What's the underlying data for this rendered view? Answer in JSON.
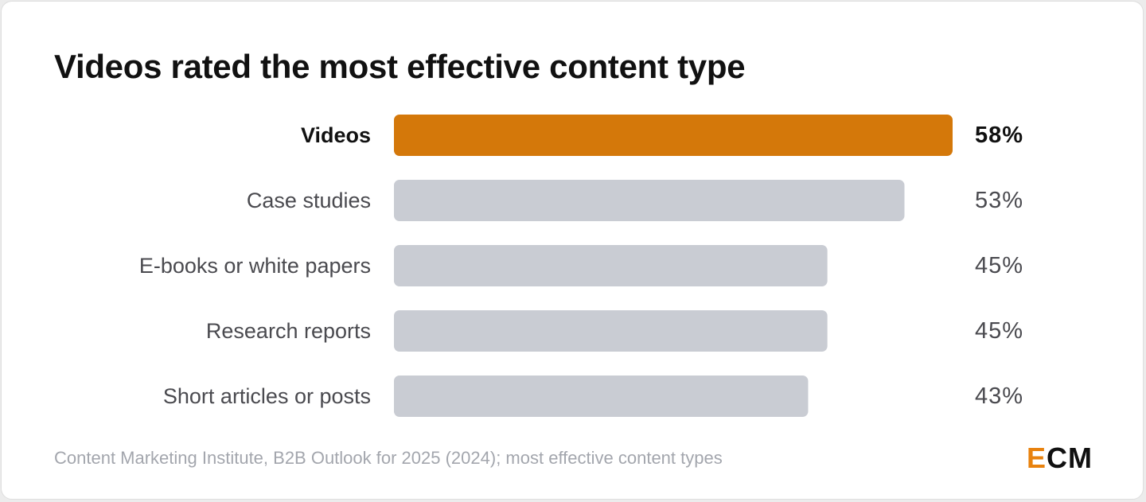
{
  "title": "Videos rated the most effective content type",
  "source": "Content Marketing Institute, B2B Outlook for 2025 (2024); most effective content types",
  "logo": {
    "first": "E",
    "rest": "CM"
  },
  "colors": {
    "highlight": "#d4780a",
    "bar": "#c9ccd3",
    "text": "#4a4a4f",
    "text_strong": "#111111"
  },
  "chart_data": {
    "type": "bar",
    "orientation": "horizontal",
    "title": "Videos rated the most effective content type",
    "categories": [
      "Videos",
      "Case studies",
      "E-books or white papers",
      "Research reports",
      "Short articles or posts"
    ],
    "values": [
      58,
      53,
      45,
      45,
      43
    ],
    "value_labels": [
      "58%",
      "53%",
      "45%",
      "45%",
      "43%"
    ],
    "highlight_index": 0,
    "unit": "%",
    "xlim": [
      0,
      58
    ],
    "grid": false,
    "legend": "none"
  }
}
